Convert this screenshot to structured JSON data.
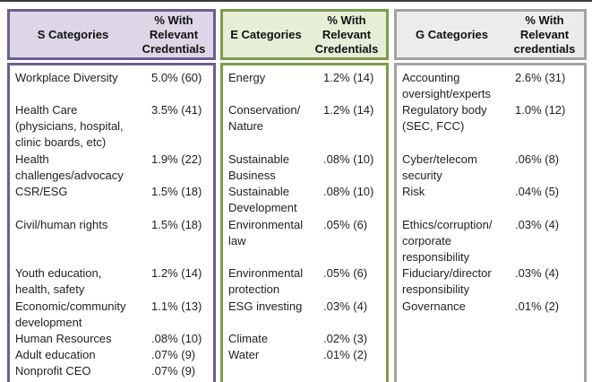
{
  "table": {
    "sections": [
      {
        "id": "S",
        "category_header": "S Categories",
        "credentials_header": "% With\nRelevant\nCredentials",
        "accent_color": "#6c5f91",
        "header_fill": "#dcd6e6",
        "rows": [
          {
            "category": "Workplace Diversity",
            "value": "5.0% (60)"
          },
          {
            "category": "Health Care\n(physicians, hospital,\nclinic boards, etc)",
            "value": "3.5% (41)"
          },
          {
            "category": "Health\nchallenges/advocacy",
            "value": "1.9% (22)"
          },
          {
            "category": "CSR/ESG",
            "value": "1.5% (18)"
          },
          {
            "category": "Civil/human rights",
            "value": "1.5% (18)"
          },
          {
            "category": "Youth education,\nhealth, safety",
            "value": "1.2% (14)"
          },
          {
            "category": "Economic/community\ndevelopment",
            "value": "1.1% (13)"
          },
          {
            "category": "Human Resources",
            "value": ".08% (10)"
          },
          {
            "category": "Adult education",
            "value": ".07% (9)"
          },
          {
            "category": "Nonprofit CEO",
            "value": ".07% (9)"
          }
        ]
      },
      {
        "id": "E",
        "category_header": "E Categories",
        "credentials_header": "% With\nRelevant\nCredentials",
        "accent_color": "#7e9a4d",
        "header_fill": "#e6eed8",
        "rows": [
          {
            "category": "Energy",
            "value": "1.2% (14)"
          },
          {
            "category": "Conservation/\nNature",
            "value": "1.2% (14)"
          },
          {
            "category": "Sustainable\nBusiness",
            "value": ".08% (10)"
          },
          {
            "category": "Sustainable\nDevelopment",
            "value": ".08% (10)"
          },
          {
            "category": "Environmental\nlaw",
            "value": ".05% (6)"
          },
          {
            "category": "Environmental\nprotection",
            "value": ".05% (6)"
          },
          {
            "category": "ESG investing",
            "value": ".03% (4)"
          },
          {
            "category": "Climate",
            "value": ".02% (3)"
          },
          {
            "category": "Water",
            "value": ".01% (2)"
          },
          {
            "category": "",
            "value": ""
          }
        ]
      },
      {
        "id": "G",
        "category_header": "G Categories",
        "credentials_header": "% With\nRelevant\ncredentials",
        "accent_color": "#a3a3a3",
        "header_fill": "#ececec",
        "rows": [
          {
            "category": "Accounting\noversight/experts",
            "value": "2.6% (31)"
          },
          {
            "category": "Regulatory body\n(SEC, FCC)",
            "value": "1.0% (12)"
          },
          {
            "category": "Cyber/telecom\nsecurity",
            "value": ".06% (8)"
          },
          {
            "category": "Risk",
            "value": ".04% (5)"
          },
          {
            "category": "Ethics/corruption/\ncorporate\nresponsibility",
            "value": ".03% (4)"
          },
          {
            "category": "Fiduciary/director\nresponsibility",
            "value": ".03% (4)"
          },
          {
            "category": "Governance",
            "value": ".01% (2)"
          },
          {
            "category": "",
            "value": ""
          },
          {
            "category": "",
            "value": ""
          },
          {
            "category": "",
            "value": ""
          }
        ]
      }
    ]
  }
}
